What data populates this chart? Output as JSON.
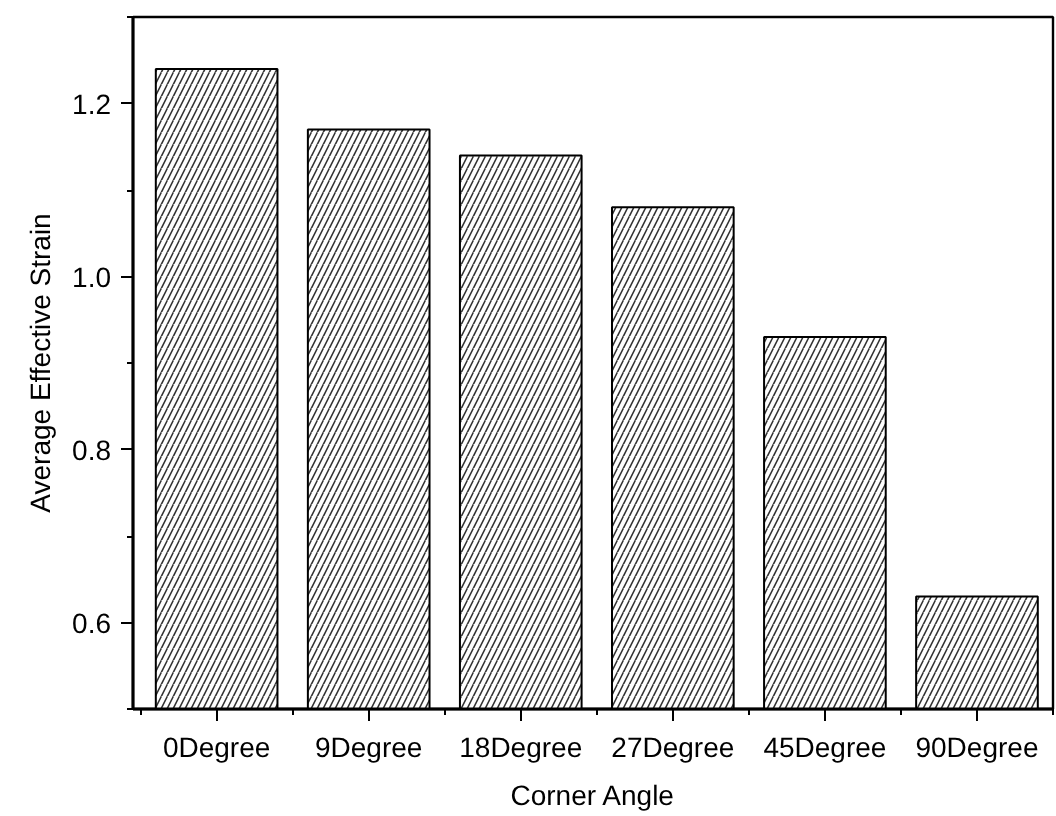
{
  "chart_data": {
    "type": "bar",
    "xlabel": "Corner Angle",
    "ylabel": "Average Effective Strain",
    "categories": [
      "0Degree",
      "9Degree",
      "18Degree",
      "27Degree",
      "45Degree",
      "90Degree"
    ],
    "values": [
      1.24,
      1.17,
      1.14,
      1.08,
      0.93,
      0.63
    ],
    "color": "#ffffff",
    "ylim": [
      0.5,
      1.3
    ],
    "yticks": [
      0.6,
      0.8,
      {
        "value": 1.0,
        "label": "1.0"
      },
      1.2
    ],
    "grid": false
  }
}
